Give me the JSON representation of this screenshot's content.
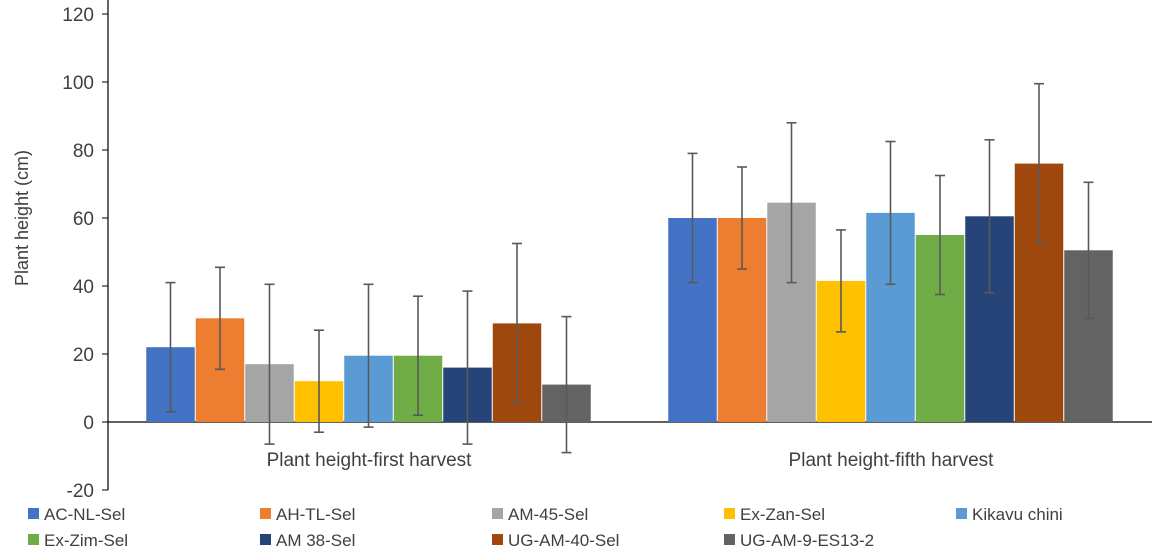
{
  "chart_data": {
    "type": "bar",
    "title": "",
    "xlabel": "",
    "ylabel": "Plant height (cm)",
    "ylim": [
      -20,
      120
    ],
    "yticks": [
      -20,
      0,
      20,
      40,
      60,
      80,
      100,
      120
    ],
    "categories": [
      "Plant height-first harvest",
      "Plant height-fifth harvest"
    ],
    "grid": false,
    "legend_position": "bottom",
    "series": [
      {
        "name": "AC-NL-Sel",
        "color": "#4472C4",
        "values": [
          22,
          60
        ],
        "error": [
          19,
          19
        ]
      },
      {
        "name": "AH-TL-Sel",
        "color": "#ED7D31",
        "values": [
          30.5,
          60
        ],
        "error": [
          15,
          15
        ]
      },
      {
        "name": "AM-45-Sel",
        "color": "#A5A5A5",
        "values": [
          17,
          64.5
        ],
        "error": [
          23.5,
          23.5
        ]
      },
      {
        "name": "Ex-Zan-Sel",
        "color": "#FFC000",
        "values": [
          12,
          41.5
        ],
        "error": [
          15,
          15
        ]
      },
      {
        "name": "Kikavu chini",
        "color": "#5B9BD5",
        "values": [
          19.5,
          61.5
        ],
        "error": [
          21,
          21
        ]
      },
      {
        "name": "Ex-Zim-Sel",
        "color": "#70AD47",
        "values": [
          19.5,
          55
        ],
        "error": [
          17.5,
          17.5
        ]
      },
      {
        "name": "AM 38-Sel",
        "color": "#264478",
        "values": [
          16,
          60.5
        ],
        "error": [
          22.5,
          22.5
        ]
      },
      {
        "name": "UG-AM-40-Sel",
        "color": "#9E480E",
        "values": [
          29,
          76
        ],
        "error": [
          23.5,
          23.5
        ]
      },
      {
        "name": "UG-AM-9-ES13-2",
        "color": "#636363",
        "values": [
          11,
          50.5
        ],
        "error": [
          20,
          20
        ]
      }
    ]
  }
}
